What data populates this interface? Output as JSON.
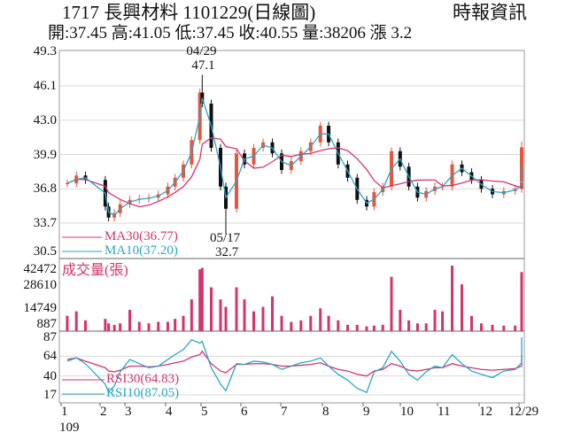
{
  "header": {
    "title": "1717  長興材料 1101229(日線圖)",
    "source": "時報資訊",
    "quote": "開:37.45 高:41.05 低:37.45 收:40.55 量:38206 漲 3.2"
  },
  "colors": {
    "up": "#e8553f",
    "down": "#111111",
    "ma30": "#d6336c",
    "ma10": "#2aa6c6",
    "rsi30": "#d6336c",
    "rsi10": "#2aa6c6",
    "volume": "#d6336c",
    "grid": "#d9d9d9"
  },
  "chart_data": [
    {
      "type": "candlestick",
      "panel": "price",
      "yticks": [
        "49.3",
        "46.1",
        "43.0",
        "39.9",
        "36.8",
        "33.7",
        "30.5"
      ],
      "ylim": [
        30.5,
        49.3
      ],
      "legend": [
        {
          "name": "MA30(36.77)"
        },
        {
          "name": "MA10(37.20)"
        }
      ],
      "annotations": [
        {
          "date": "04/29",
          "label": "04/29",
          "value": "47.1"
        },
        {
          "date": "05/17",
          "label": "05/17",
          "value": "32.7"
        }
      ],
      "points": [
        {
          "d": "01/03",
          "c": 37.3
        },
        {
          "d": "01/10",
          "c": 38.0
        },
        {
          "d": "01/17",
          "c": 37.6
        },
        {
          "d": "02/03",
          "c": 35.2
        },
        {
          "d": "02/07",
          "c": 34.2
        },
        {
          "d": "02/14",
          "c": 34.6
        },
        {
          "d": "02/21",
          "c": 35.4
        },
        {
          "d": "03/02",
          "c": 35.8
        },
        {
          "d": "03/09",
          "c": 35.9
        },
        {
          "d": "03/16",
          "c": 36.0
        },
        {
          "d": "03/23",
          "c": 36.3
        },
        {
          "d": "03/30",
          "c": 37.0
        },
        {
          "d": "04/06",
          "c": 37.8
        },
        {
          "d": "04/13",
          "c": 39.0
        },
        {
          "d": "04/20",
          "c": 41.2
        },
        {
          "d": "04/27",
          "c": 45.5
        },
        {
          "d": "04/29",
          "c": 44.5,
          "h": 47.1
        },
        {
          "d": "05/06",
          "c": 40.5
        },
        {
          "d": "05/13",
          "c": 37.0
        },
        {
          "d": "05/17",
          "c": 35.0,
          "l": 32.7
        },
        {
          "d": "05/25",
          "c": 40.0
        },
        {
          "d": "06/01",
          "c": 39.0
        },
        {
          "d": "06/08",
          "c": 40.5
        },
        {
          "d": "06/15",
          "c": 41.0
        },
        {
          "d": "06/22",
          "c": 40.0
        },
        {
          "d": "06/29",
          "c": 38.5
        },
        {
          "d": "07/06",
          "c": 39.3
        },
        {
          "d": "07/13",
          "c": 40.2
        },
        {
          "d": "07/20",
          "c": 41.0
        },
        {
          "d": "07/27",
          "c": 42.5
        },
        {
          "d": "08/03",
          "c": 41.0
        },
        {
          "d": "08/10",
          "c": 39.0
        },
        {
          "d": "08/17",
          "c": 37.8
        },
        {
          "d": "08/24",
          "c": 35.8
        },
        {
          "d": "08/31",
          "c": 35.2
        },
        {
          "d": "09/07",
          "c": 36.5
        },
        {
          "d": "09/14",
          "c": 37.0
        },
        {
          "d": "09/21",
          "c": 40.2
        },
        {
          "d": "09/28",
          "c": 38.8
        },
        {
          "d": "10/05",
          "c": 37.0
        },
        {
          "d": "10/12",
          "c": 36.0
        },
        {
          "d": "10/19",
          "c": 36.6
        },
        {
          "d": "10/26",
          "c": 37.0
        },
        {
          "d": "11/02",
          "c": 37.0
        },
        {
          "d": "11/09",
          "c": 39.0
        },
        {
          "d": "11/16",
          "c": 38.3
        },
        {
          "d": "11/23",
          "c": 37.6
        },
        {
          "d": "11/30",
          "c": 36.8
        },
        {
          "d": "12/07",
          "c": 36.3
        },
        {
          "d": "12/14",
          "c": 36.6
        },
        {
          "d": "12/21",
          "c": 36.8
        },
        {
          "d": "12/28",
          "c": 37.4
        },
        {
          "d": "12/29",
          "c": 40.55,
          "o": 37.45,
          "h": 41.05,
          "l": 37.45
        }
      ]
    },
    {
      "type": "bar",
      "panel": "volume",
      "title": "成交量(張)",
      "yticks": [
        "42472",
        "28610",
        "14749",
        "887"
      ],
      "values": [
        9000,
        12000,
        6000,
        7000,
        4000,
        3000,
        4000,
        13000,
        5000,
        4000,
        5000,
        5000,
        7000,
        9000,
        20000,
        40000,
        41000,
        28000,
        20000,
        15000,
        28000,
        20000,
        12000,
        15000,
        22000,
        9000,
        5000,
        6000,
        9000,
        14000,
        9000,
        6000,
        3000,
        3000,
        2000,
        2500,
        3000,
        35000,
        13000,
        6000,
        4000,
        4000,
        13000,
        12000,
        42472,
        30000,
        9000,
        4000,
        3000,
        2500,
        2500,
        3500,
        38206
      ]
    },
    {
      "type": "line",
      "panel": "rsi",
      "yticks": [
        "87",
        "64",
        "40",
        "17"
      ],
      "series": [
        {
          "name": "RSI30(64.83)",
          "values": [
            60,
            62,
            58,
            50,
            46,
            45,
            47,
            52,
            52,
            51,
            52,
            54,
            56,
            58,
            63,
            66,
            70,
            55,
            46,
            44,
            54,
            54,
            55,
            55,
            54,
            52,
            52,
            53,
            54,
            56,
            52,
            48,
            46,
            42,
            40,
            46,
            48,
            55,
            52,
            47,
            46,
            48,
            50,
            50,
            55,
            52,
            50,
            48,
            47,
            48,
            49,
            52,
            64.83
          ]
        },
        {
          "name": "RSI10(87.05)",
          "values": [
            58,
            62,
            55,
            30,
            20,
            28,
            45,
            60,
            55,
            50,
            52,
            60,
            66,
            72,
            84,
            80,
            82,
            50,
            30,
            22,
            55,
            54,
            58,
            57,
            54,
            48,
            52,
            56,
            58,
            62,
            52,
            42,
            35,
            25,
            20,
            45,
            50,
            70,
            58,
            42,
            35,
            45,
            52,
            50,
            66,
            55,
            46,
            42,
            38,
            46,
            48,
            56,
            87.05
          ]
        }
      ]
    }
  ],
  "xaxis": {
    "months": [
      "1",
      "2",
      "3",
      "4",
      "5",
      "6",
      "7",
      "8",
      "9",
      "10",
      "11",
      "12",
      "12/29"
    ],
    "year": "109"
  }
}
